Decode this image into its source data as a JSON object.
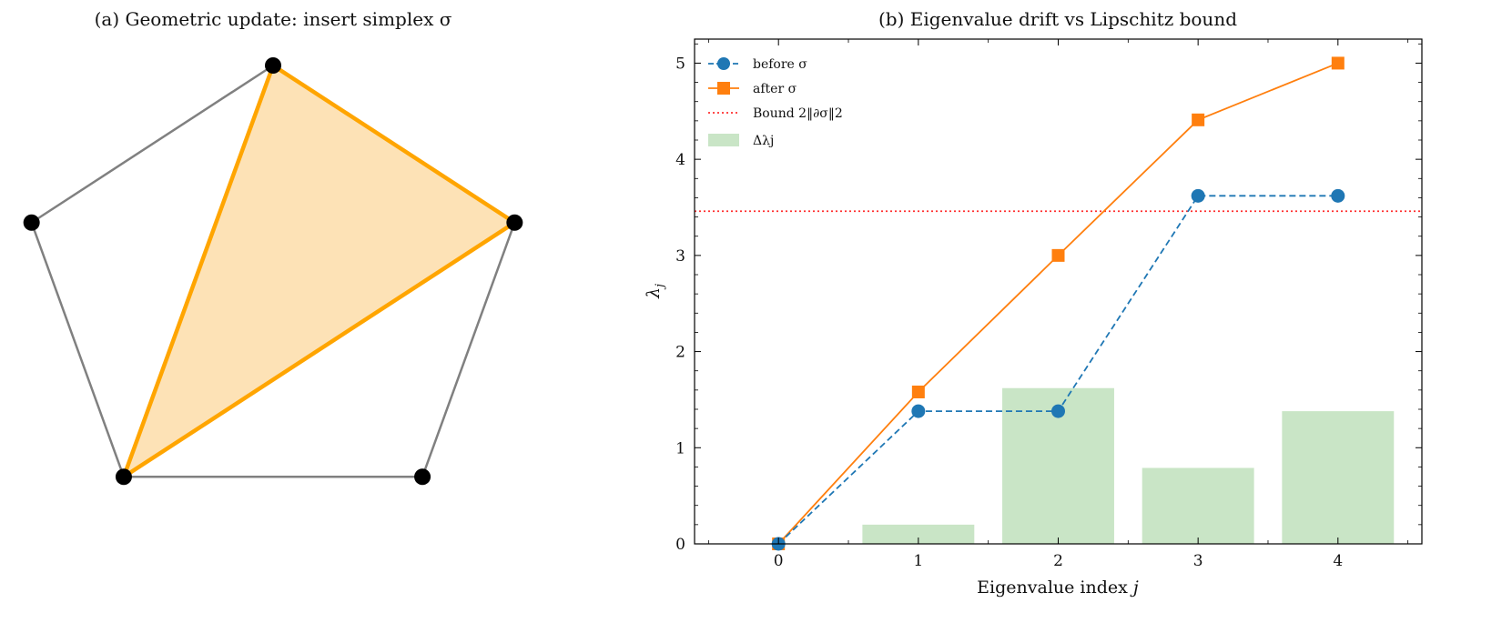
{
  "chart_data": [
    {
      "type": "diagram",
      "title": "(a) Geometric update: insert simplex σ",
      "vertices": [
        {
          "name": "v0",
          "x": 0.0,
          "y": 1.0
        },
        {
          "name": "v1",
          "x": 0.951,
          "y": 0.309
        },
        {
          "name": "v2",
          "x": 0.588,
          "y": -0.809
        },
        {
          "name": "v3",
          "x": -0.588,
          "y": -0.809
        },
        {
          "name": "v4",
          "x": -0.951,
          "y": 0.309
        }
      ],
      "edges": [
        [
          "v0",
          "v1"
        ],
        [
          "v1",
          "v2"
        ],
        [
          "v2",
          "v3"
        ],
        [
          "v3",
          "v4"
        ],
        [
          "v4",
          "v0"
        ]
      ],
      "inserted_simplex": [
        "v0",
        "v1",
        "v3"
      ],
      "colors": {
        "edge": "#808080",
        "simplex_edge": "#FFA500",
        "simplex_fill": "#FDE2B6",
        "vertex": "#000000"
      }
    },
    {
      "type": "line",
      "title": "(b) Eigenvalue drift vs Lipschitz bound",
      "xlabel": "Eigenvalue index j",
      "ylabel": "λj",
      "x": [
        0,
        1,
        2,
        3,
        4
      ],
      "xlim": [
        -0.6,
        4.6
      ],
      "ylim": [
        0,
        5.25
      ],
      "xticks": [
        "0",
        "1",
        "2",
        "3",
        "4"
      ],
      "yticks": [
        "0",
        "1",
        "2",
        "3",
        "4",
        "5"
      ],
      "series": [
        {
          "name": "before σ",
          "kind": "line",
          "style": "dashed",
          "marker": "circle",
          "color": "#1F77B4",
          "values": [
            0.0,
            1.38,
            1.38,
            3.62,
            3.62
          ]
        },
        {
          "name": "after σ",
          "kind": "line",
          "style": "solid",
          "marker": "square",
          "color": "#FF7F0E",
          "values": [
            0.0,
            1.58,
            3.0,
            4.41,
            5.0
          ]
        },
        {
          "name": "Δλj",
          "kind": "bar",
          "color": "#C9E5C6",
          "values": [
            0.0,
            0.2,
            1.62,
            0.79,
            1.38
          ]
        }
      ],
      "bound": {
        "name": "Bound 2‖∂σ‖2",
        "value": 3.46,
        "style": "dotted",
        "color": "#FF3030"
      },
      "legend": "top-left",
      "grid": false
    }
  ]
}
